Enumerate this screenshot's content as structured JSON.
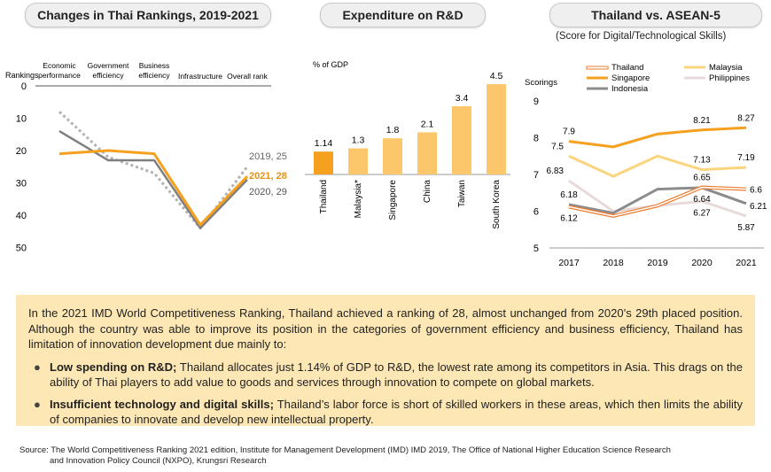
{
  "panels": {
    "rankings_title": "Changes in Thai Rankings, 2019-2021",
    "rd_title": "Expenditure on R&D",
    "asean_title": "Thailand vs. ASEAN-5",
    "asean_subtitle": "(Score for Digital/Technological Skills)"
  },
  "chart_data": [
    {
      "type": "line",
      "title": "Changes in Thai Rankings, 2019-2021",
      "ylabel": "Rankings",
      "y_inverted": true,
      "ylim": [
        0,
        50
      ],
      "yticks": [
        0,
        10,
        20,
        30,
        40,
        50
      ],
      "categories": [
        [
          "Economic",
          "performance"
        ],
        [
          "Government",
          "efficiency"
        ],
        [
          "Business",
          "efficiency"
        ],
        [
          "Infrastructure"
        ],
        [
          "Overall rank"
        ]
      ],
      "series": [
        {
          "name": "2019",
          "values": [
            8,
            22,
            27,
            44,
            25
          ],
          "color": "#b3b3b3",
          "dashed": true,
          "label": "2019, 25"
        },
        {
          "name": "2020",
          "values": [
            14,
            23,
            23,
            44,
            29
          ],
          "color": "#7f7f7f",
          "dashed": false,
          "label": "2020, 29"
        },
        {
          "name": "2021",
          "values": [
            21,
            20,
            21,
            43,
            28
          ],
          "color": "#f5a01e",
          "dashed": false,
          "label": "2021, 28"
        }
      ]
    },
    {
      "type": "bar",
      "title": "Expenditure on R&D",
      "ylabel": "% of GDP",
      "ylim": [
        0,
        4.5
      ],
      "categories": [
        "Thailand",
        "Malaysia*",
        "Singapore",
        "China",
        "Taiwan",
        "South Korea"
      ],
      "values": [
        1.14,
        1.3,
        1.8,
        2.1,
        3.4,
        4.5
      ],
      "value_labels": [
        "1.14",
        "1.3",
        "1.8",
        "2.1",
        "3.4",
        "4.5"
      ],
      "colors": [
        "#f5a01e",
        "#fcc76a",
        "#fcc76a",
        "#fcc76a",
        "#fcc76a",
        "#fcc76a"
      ]
    },
    {
      "type": "line",
      "title": "Thailand vs. ASEAN-5",
      "subtitle": "(Score for Digital/Technological Skills)",
      "ylabel": "Scorings",
      "ylim": [
        5,
        9
      ],
      "yticks": [
        5,
        6,
        7,
        8,
        9
      ],
      "categories": [
        "2017",
        "2018",
        "2019",
        "2020",
        "2021"
      ],
      "series": [
        {
          "name": "Thailand",
          "values": [
            6.12,
            5.87,
            6.15,
            6.65,
            6.6
          ],
          "color": "#ed7d31",
          "outline": true
        },
        {
          "name": "Malaysia",
          "values": [
            7.5,
            6.95,
            7.5,
            7.13,
            7.19
          ],
          "color": "#fbd57e"
        },
        {
          "name": "Singapore",
          "values": [
            7.9,
            7.75,
            8.1,
            8.21,
            8.27
          ],
          "color": "#f5a01e"
        },
        {
          "name": "Philippines",
          "values": [
            6.83,
            6.0,
            6.15,
            6.27,
            5.87
          ],
          "color": "#e9dada"
        },
        {
          "name": "Indonesia",
          "values": [
            6.18,
            5.95,
            6.6,
            6.64,
            6.21
          ],
          "color": "#8c8c8c"
        }
      ],
      "annotations": [
        {
          "text": "7.9",
          "year": "2017",
          "value": 7.9,
          "pos": "above"
        },
        {
          "text": "7.5",
          "year": "2017",
          "value": 7.5,
          "pos": "left-above"
        },
        {
          "text": "6.83",
          "year": "2017",
          "value": 6.83,
          "pos": "left-above"
        },
        {
          "text": "6.18",
          "year": "2017",
          "value": 6.18,
          "pos": "above"
        },
        {
          "text": "6.12",
          "year": "2017",
          "value": 6.12,
          "pos": "below"
        },
        {
          "text": "8.21",
          "year": "2020",
          "value": 8.21,
          "pos": "above"
        },
        {
          "text": "7.13",
          "year": "2020",
          "value": 7.13,
          "pos": "above"
        },
        {
          "text": "6.65",
          "year": "2020",
          "value": 6.65,
          "pos": "above"
        },
        {
          "text": "6.64",
          "year": "2020",
          "value": 6.64,
          "pos": "below"
        },
        {
          "text": "6.27",
          "year": "2020",
          "value": 6.27,
          "pos": "below"
        },
        {
          "text": "8.27",
          "year": "2021",
          "value": 8.27,
          "pos": "above"
        },
        {
          "text": "7.19",
          "year": "2021",
          "value": 7.19,
          "pos": "above"
        },
        {
          "text": "6.6",
          "year": "2021",
          "value": 6.6,
          "pos": "right"
        },
        {
          "text": "6.21",
          "year": "2021",
          "value": 6.21,
          "pos": "right-below"
        },
        {
          "text": "5.87",
          "year": "2021",
          "value": 5.87,
          "pos": "below"
        }
      ]
    }
  ],
  "info": {
    "intro": "In the 2021 IMD World Competitiveness Ranking, Thailand achieved a ranking of 28, almost unchanged from 2020’s 29th placed position. Although the country was able to improve its position in the categories of government efficiency and business efficiency, Thailand has limitation of innovation development due mainly to:",
    "bullet1_bold": "Low spending on R&D;",
    "bullet1_text": " Thailand allocates just 1.14% of GDP to R&D, the lowest rate among its competitors in Asia. This drags on the ability of Thai players to add value to goods and services through innovation to compete on global markets.",
    "bullet2_bold": "Insufficient technology and digital skills;",
    "bullet2_text": " Thailand’s labor force is short of skilled workers in these areas, which then limits the ability of companies to innovate and develop new intellectual property."
  },
  "source": {
    "line1": "Source: The World Competitiveness Ranking 2021 edition, Institute for Management Development (IMD) IMD 2019, The Office of National Higher Education Science Research",
    "line2": "and Innovation Policy Council (NXPO), Krungsri Research"
  }
}
